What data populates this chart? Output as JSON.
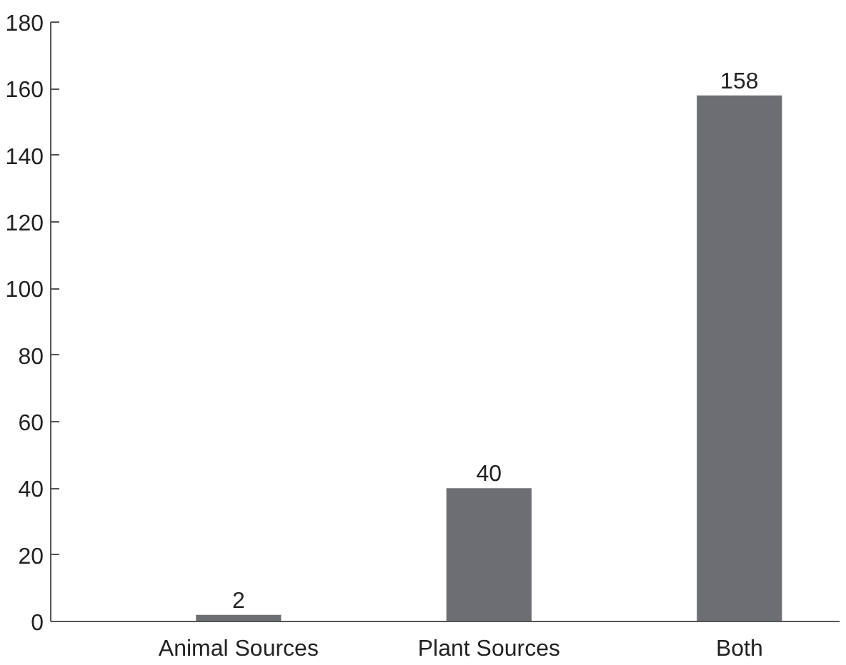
{
  "chart_data": {
    "type": "bar",
    "categories": [
      "Animal Sources",
      "Plant Sources",
      "Both"
    ],
    "values": [
      2,
      40,
      158
    ],
    "color": "#6d6e71",
    "ylim": [
      0,
      180
    ],
    "yticks": [
      0,
      20,
      40,
      60,
      80,
      100,
      120,
      140,
      160,
      180
    ],
    "data_labels": true,
    "grid": false
  }
}
